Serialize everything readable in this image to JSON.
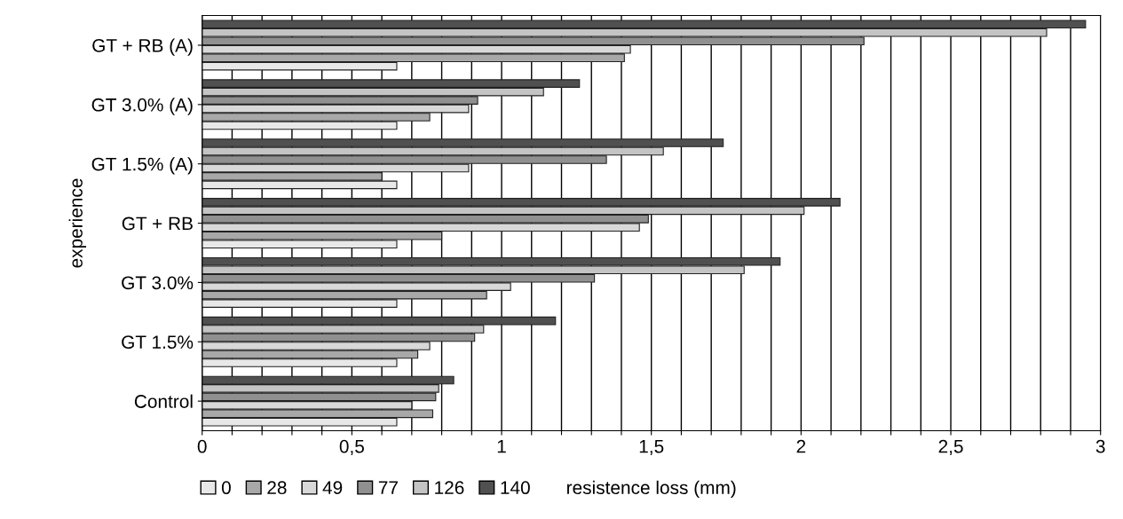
{
  "chart_data": {
    "type": "bar",
    "orientation": "horizontal",
    "xlabel": "resistence loss (mm)",
    "ylabel": "experience",
    "categories": [
      "GT + RB (A)",
      "GT 3.0% (A)",
      "GT 1.5% (A)",
      "GT + RB",
      "GT 3.0%",
      "GT 1.5%",
      "Control"
    ],
    "series": [
      {
        "name": "0",
        "color": "#e8e8e8",
        "values": [
          0.65,
          0.65,
          0.65,
          0.65,
          0.65,
          0.65,
          0.65
        ]
      },
      {
        "name": "28",
        "color": "#a8a8a8",
        "values": [
          1.41,
          0.76,
          0.6,
          0.8,
          0.95,
          0.72,
          0.77
        ]
      },
      {
        "name": "49",
        "color": "#d8d8d8",
        "values": [
          1.43,
          0.89,
          0.89,
          1.46,
          1.03,
          0.76,
          0.7
        ]
      },
      {
        "name": "77",
        "color": "#909090",
        "values": [
          2.21,
          0.92,
          1.35,
          1.49,
          1.31,
          0.91,
          0.78
        ]
      },
      {
        "name": "126",
        "color": "#c4c4c4",
        "values": [
          2.82,
          1.14,
          1.54,
          2.01,
          1.81,
          0.94,
          0.79
        ]
      },
      {
        "name": "140",
        "color": "#505050",
        "values": [
          2.95,
          1.26,
          1.74,
          2.13,
          1.93,
          1.18,
          0.84
        ]
      }
    ],
    "xlim": [
      0,
      3
    ],
    "xticks": [
      0,
      {
        "value": 0.1,
        "label": null
      },
      {
        "value": 0.2,
        "label": null
      },
      {
        "value": 0.3,
        "label": null
      },
      {
        "value": 0.4,
        "label": null
      },
      {
        "value": 0.5,
        "label": "0,5"
      },
      {
        "value": 0.6,
        "label": null
      },
      {
        "value": 0.7,
        "label": null
      },
      {
        "value": 0.8,
        "label": null
      },
      {
        "value": 0.9,
        "label": null
      },
      1,
      {
        "value": 1.1,
        "label": null
      },
      {
        "value": 1.2,
        "label": null
      },
      {
        "value": 1.3,
        "label": null
      },
      {
        "value": 1.4,
        "label": null
      },
      {
        "value": 1.5,
        "label": "1,5"
      },
      {
        "value": 1.6,
        "label": null
      },
      {
        "value": 1.7,
        "label": null
      },
      {
        "value": 1.8,
        "label": null
      },
      {
        "value": 1.9,
        "label": null
      },
      2,
      {
        "value": 2.1,
        "label": null
      },
      {
        "value": 2.2,
        "label": null
      },
      {
        "value": 2.3,
        "label": null
      },
      {
        "value": 2.4,
        "label": null
      },
      {
        "value": 2.5,
        "label": "2,5"
      },
      {
        "value": 2.6,
        "label": null
      },
      {
        "value": 2.7,
        "label": null
      },
      {
        "value": 2.8,
        "label": null
      },
      {
        "value": 2.9,
        "label": null
      },
      3
    ],
    "grid": "x",
    "legend": "bottom left"
  }
}
